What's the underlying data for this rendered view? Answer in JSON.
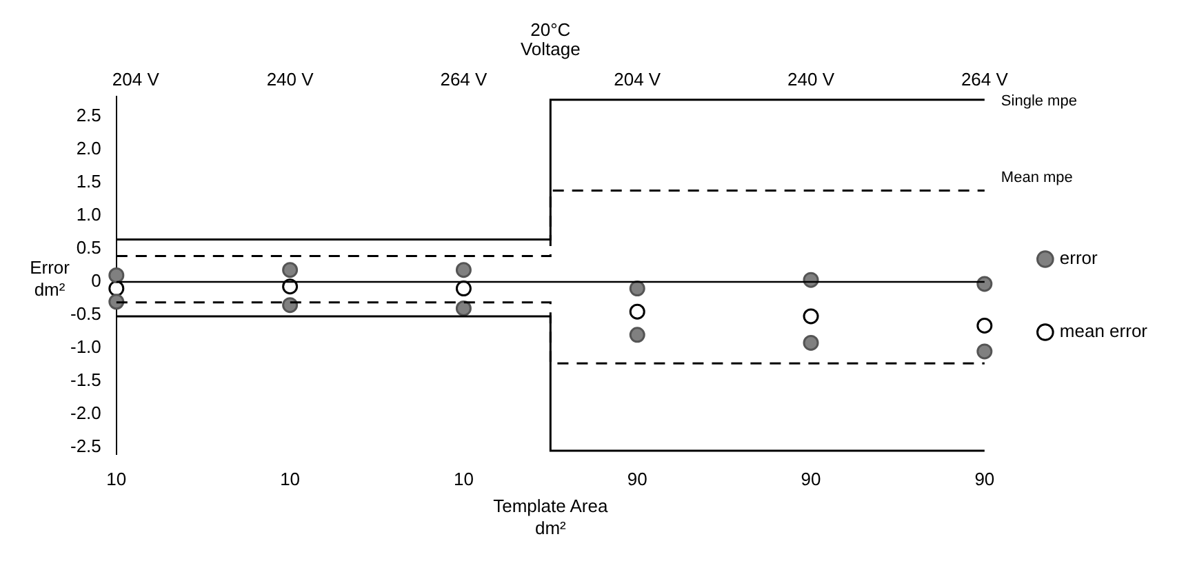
{
  "chart_data": {
    "type": "scatter",
    "title": "20°C",
    "x2label": "Voltage",
    "xlabel": "Template Area dm²",
    "ylabel": "Error dm²",
    "categories": [
      "10",
      "10",
      "10",
      "90",
      "90",
      "90"
    ],
    "annotations": [
      "204 V",
      "240 V",
      "264 V",
      "204 V",
      "240 V",
      "264 V"
    ],
    "series": [
      {
        "name": "Single mpe",
        "type": "step",
        "line_style": "solid",
        "marker": "none",
        "color": "#000000",
        "values": [
          0.64,
          0.64,
          0.64,
          2.75,
          2.75,
          2.75
        ]
      },
      {
        "type": "step",
        "line_style": "solid",
        "marker": "none",
        "color": "#000000",
        "values": [
          -0.52,
          -0.52,
          -0.52,
          -2.55,
          -2.55,
          -2.55
        ]
      },
      {
        "name": "Mean mpe",
        "type": "step",
        "line_style": "dashed",
        "marker": "none",
        "color": "#000000",
        "values": [
          0.39,
          0.39,
          0.39,
          1.38,
          1.38,
          1.38
        ]
      },
      {
        "type": "step",
        "line_style": "dashed",
        "marker": "none",
        "color": "#000000",
        "values": [
          -0.31,
          -0.31,
          -0.31,
          -1.23,
          -1.23,
          -1.23
        ]
      },
      {
        "name": "error",
        "marker": "circle",
        "color": "#808080",
        "values": [
          0.1,
          0.18,
          0.18,
          -0.1,
          0.03,
          -0.03
        ]
      },
      {
        "marker": "circle",
        "color": "#808080",
        "values": [
          -0.3,
          -0.35,
          -0.4,
          -0.8,
          -0.92,
          -1.05
        ]
      },
      {
        "name": "mean error",
        "marker": "circle",
        "color": "#000000",
        "values": [
          -0.1,
          -0.07,
          -0.1,
          -0.45,
          -0.52,
          -0.66
        ]
      }
    ],
    "ref_lines": [
      {
        "axis": "y",
        "value": 0,
        "color": "#000000"
      }
    ],
    "ylim": [
      -2.6,
      2.8
    ],
    "yticks": [
      2.5,
      {
        "value": 2,
        "label": "2.0"
      },
      1.5,
      {
        "value": 1,
        "label": "1.0"
      },
      0.5,
      0,
      -0.5,
      {
        "value": -1,
        "label": "-1.0"
      },
      -1.5,
      {
        "value": -2,
        "label": "-2.0"
      },
      -2.5
    ],
    "grid": false,
    "legend": "right"
  }
}
